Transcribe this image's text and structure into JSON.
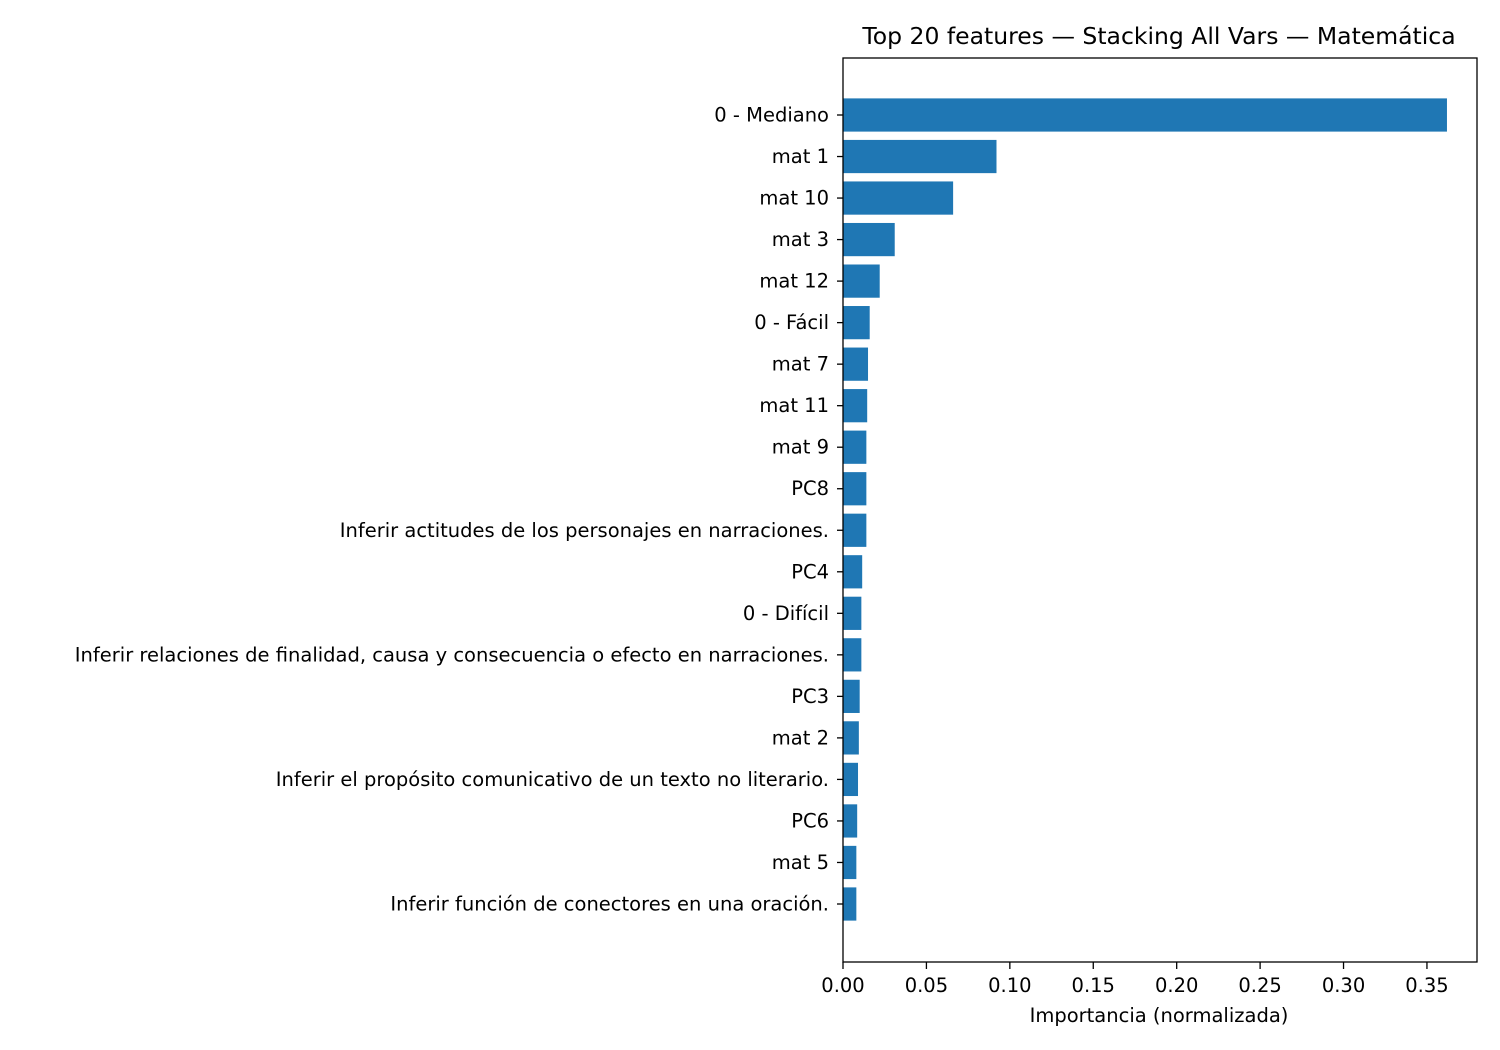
{
  "chart_data": {
    "type": "bar",
    "orientation": "horizontal",
    "title": "Top 20 features — Stacking All Vars — Matemática",
    "xlabel": "Importancia (normalizada)",
    "ylabel": "",
    "xlim": [
      0,
      0.38
    ],
    "xticks": [
      "0.00",
      "0.05",
      "0.10",
      "0.15",
      "0.20",
      "0.25",
      "0.30",
      "0.35"
    ],
    "grid": false,
    "bar_color": "#1f77b4",
    "categories": [
      "0 - Mediano",
      "mat 1",
      "mat 10",
      "mat 3",
      "mat 12",
      "0 - Fácil",
      "mat 7",
      "mat 11",
      "mat 9",
      "PC8",
      "Inferir actitudes de los personajes en narraciones.",
      "PC4",
      "0 - Difícil",
      "Inferir relaciones de finalidad, causa y consecuencia o efecto en narraciones.",
      "PC3",
      "mat 2",
      "Inferir el propósito comunicativo de un texto no literario.",
      "PC6",
      "mat 5",
      "Inferir función de conectores en una oración."
    ],
    "values": [
      0.362,
      0.092,
      0.066,
      0.031,
      0.022,
      0.016,
      0.015,
      0.0145,
      0.014,
      0.014,
      0.014,
      0.0115,
      0.011,
      0.011,
      0.01,
      0.0095,
      0.009,
      0.0085,
      0.008,
      0.008
    ]
  }
}
